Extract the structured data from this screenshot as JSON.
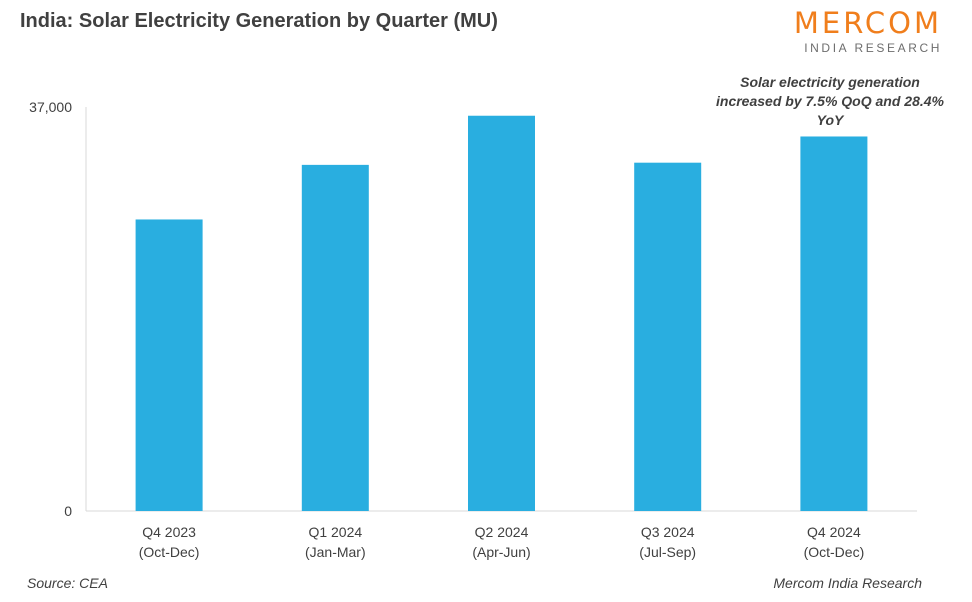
{
  "title": "India: Solar Electricity Generation by Quarter (MU)",
  "logo": {
    "main": "MERCOM",
    "sub": "INDIA RESEARCH"
  },
  "annotation": "Solar electricity generation increased by 7.5% QoQ and 28.4% YoY",
  "source": "Source: CEA",
  "credit": "Mercom India Research",
  "colors": {
    "bar": "#29aee0",
    "brand": "#f07e1c",
    "axis": "#d9d9d9"
  },
  "chart_data": {
    "type": "bar",
    "title": "India: Solar Electricity Generation by Quarter (MU)",
    "categories": [
      [
        "Q4 2023",
        "(Oct-Dec)"
      ],
      [
        "Q1 2024",
        "(Jan-Mar)"
      ],
      [
        "Q2 2024",
        "(Apr-Jun)"
      ],
      [
        "Q3 2024",
        "(Jul-Sep)"
      ],
      [
        "Q4 2024",
        "(Oct-Dec)"
      ]
    ],
    "values": [
      26700,
      31700,
      36200,
      31900,
      34300
    ],
    "ylim": [
      0,
      37000
    ],
    "y_ticks": [
      "0",
      "37,000"
    ],
    "grid": false
  }
}
